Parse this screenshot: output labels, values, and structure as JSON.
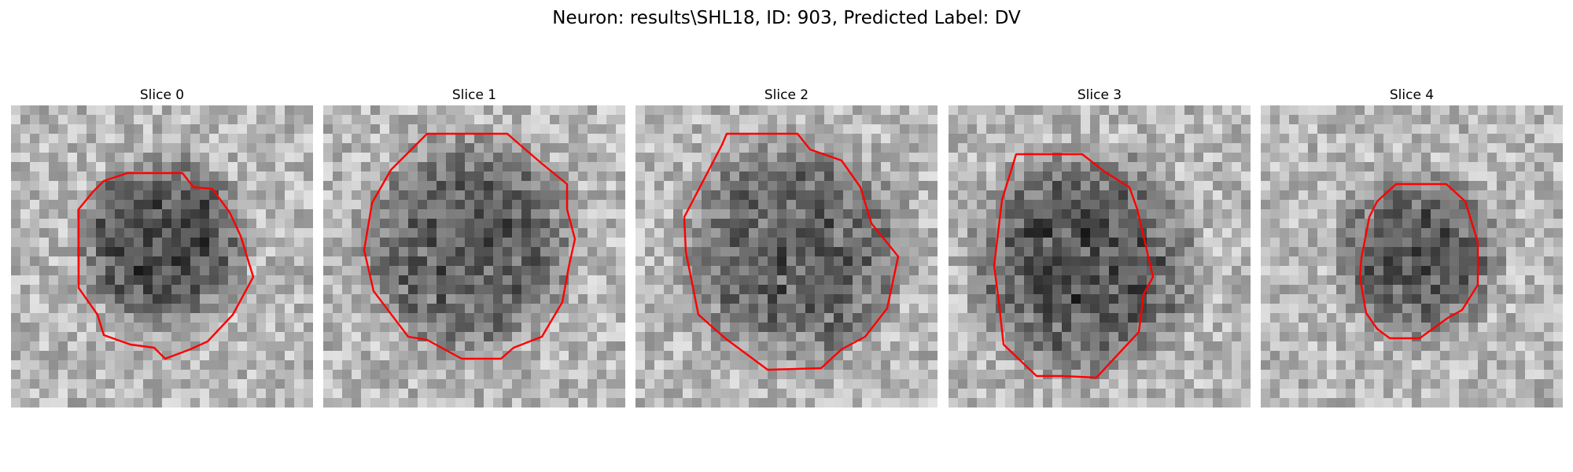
{
  "figure": {
    "title": "Neuron: results\\SHL18, ID: 903, Predicted Label: DV",
    "colormap": "gray",
    "contour_color": "#ff0000"
  },
  "slices": [
    {
      "title": "Slice 0"
    },
    {
      "title": "Slice 1"
    },
    {
      "title": "Slice 2"
    },
    {
      "title": "Slice 3"
    },
    {
      "title": "Slice 4"
    }
  ]
}
